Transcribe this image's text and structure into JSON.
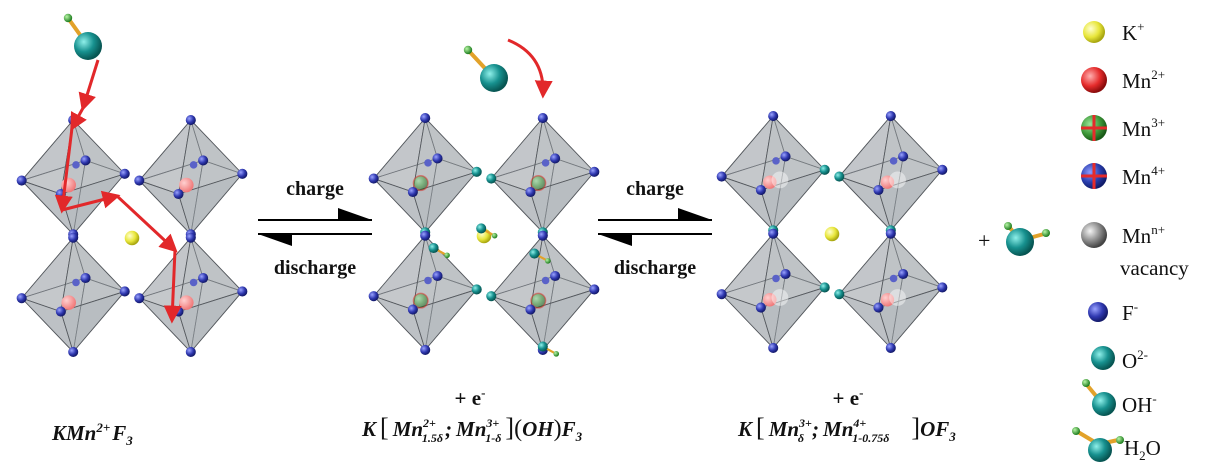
{
  "process": {
    "arrow1": {
      "top_label": "charge",
      "bottom_label": "discharge"
    },
    "arrow2": {
      "top_label": "charge",
      "bottom_label": "discharge"
    },
    "plus_sign": "+"
  },
  "structures": [
    {
      "formula": {
        "base": "KMn",
        "sup": "2+",
        "tail": "F",
        "tail_sub": "3"
      }
    },
    {
      "electron_note": {
        "text": "+ e",
        "sup": "-"
      },
      "formula": {
        "lead": "K",
        "term1": {
          "base": "Mn",
          "sup": "2+",
          "sub": "1.5δ"
        },
        "sep": ";",
        "term2": {
          "base": "Mn",
          "sup": "3+",
          "sub": "1-δ"
        },
        "paren": "OH",
        "tail": "F",
        "tail_sub": "3"
      }
    },
    {
      "electron_note": {
        "text": "+ e",
        "sup": "-"
      },
      "formula": {
        "lead": "K",
        "term1": {
          "base": "Mn",
          "sup": "3+",
          "sub": "δ"
        },
        "sep": ";",
        "term2": {
          "base": "Mn",
          "sup": "4+",
          "sub": "1-0.75δ"
        },
        "tail": "OF",
        "tail_sub": "3"
      }
    }
  ],
  "legend": [
    {
      "base": "K",
      "sup": "+",
      "color": "#e8e63a"
    },
    {
      "base": "Mn",
      "sup": "2+",
      "color": "#e52b2b"
    },
    {
      "base": "Mn",
      "sup": "3+",
      "color": "#3f9a3a"
    },
    {
      "base": "Mn",
      "sup": "4+",
      "color": "#2a3fb0"
    },
    {
      "base": "Mn",
      "sup": "n+",
      "extra": "vacancy",
      "color": "#8a8a8a"
    },
    {
      "base": "F",
      "sup": "-",
      "color": "#3a44b5"
    },
    {
      "base": "O",
      "sup": "2-",
      "color": "#14908e"
    },
    {
      "base": "OH",
      "sup": "-",
      "color": "#14908e"
    },
    {
      "base": "H",
      "sub": "2",
      "tail": "O",
      "color": "#14908e"
    }
  ],
  "colors": {
    "fluoride": "#2f38b0",
    "oxygen": "#17918f",
    "potassium": "#e8e63a",
    "mn2": "#e84a4a",
    "octahedron_fill": "#9ea3a8",
    "bond": "#e2a22a",
    "hydrogen": "#2fa52f",
    "path_arrow": "#e2282a"
  }
}
